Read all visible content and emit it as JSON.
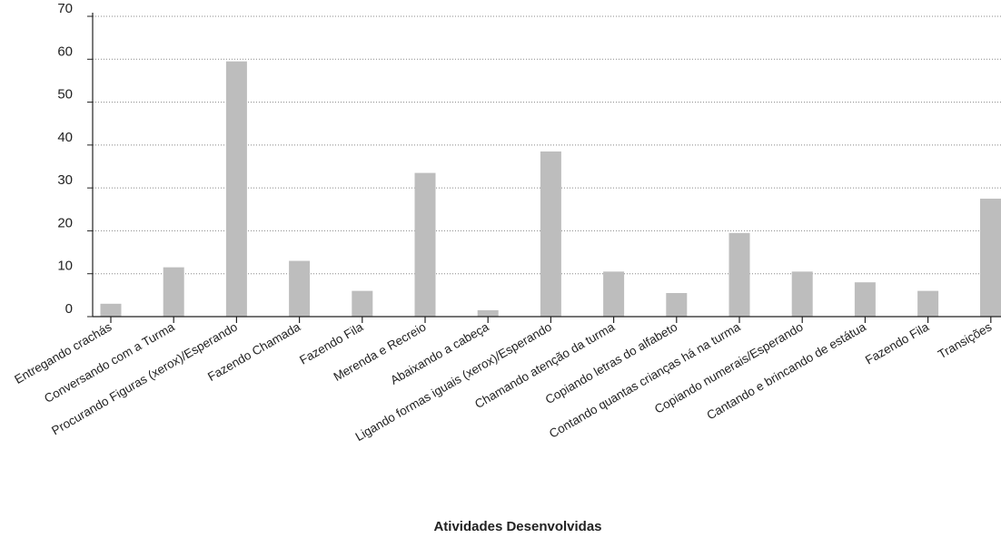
{
  "chart_data": {
    "type": "bar",
    "xlabel": "Atividades Desenvolvidas",
    "ylabel": "",
    "ylim": [
      0,
      70
    ],
    "yticks": [
      0,
      10,
      20,
      30,
      40,
      50,
      60,
      70
    ],
    "grid": "horizontal dotted",
    "categories": [
      "Entregando crachás",
      "Conversando com a Turma",
      "Procurando Figuras (xerox)/Esperando",
      "Fazendo Chamada",
      "Fazendo Fila",
      "Merenda e Recreio",
      "Abaixando a cabeça",
      "Ligando formas iguais (xerox)/Esperando",
      "Chamando atenção da turma",
      "Copiando letras do alfabeto",
      "Contando quantas crianças há na turma",
      "Copiando numerais/Esperando",
      "Cantando e brincando de estátua",
      "Fazendo Fila",
      "Transições"
    ],
    "values": [
      3,
      11.5,
      59.5,
      13,
      6,
      33.5,
      1.5,
      38.5,
      10.5,
      5.5,
      19.5,
      10.5,
      8,
      6,
      27.5
    ],
    "bar_color": "#bdbdbd",
    "grid_color": "#888888"
  }
}
